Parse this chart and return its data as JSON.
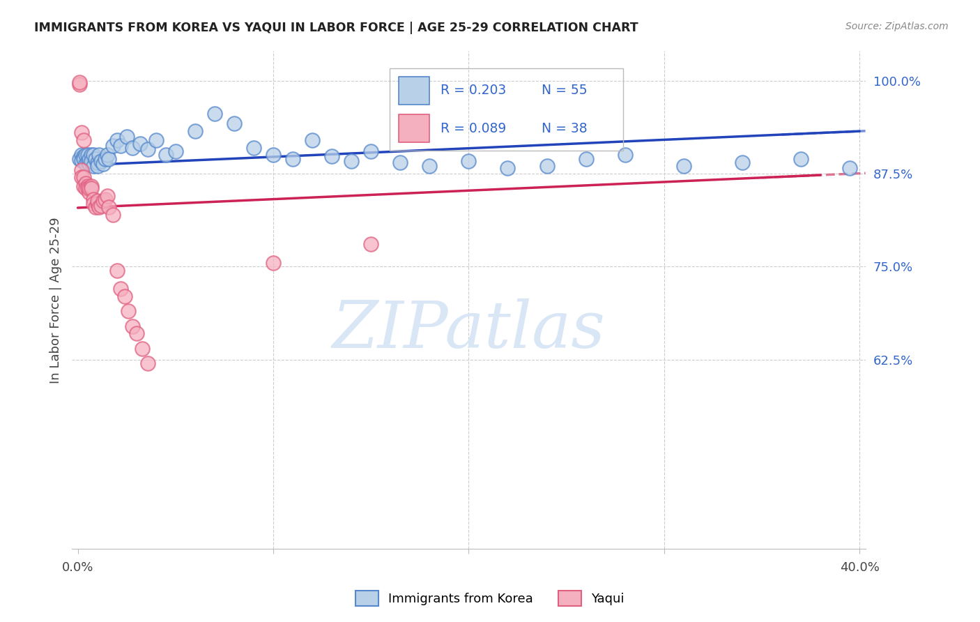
{
  "title": "IMMIGRANTS FROM KOREA VS YAQUI IN LABOR FORCE | AGE 25-29 CORRELATION CHART",
  "source": "Source: ZipAtlas.com",
  "ylabel": "In Labor Force | Age 25-29",
  "xlim": [
    -0.003,
    0.403
  ],
  "ylim": [
    0.37,
    1.04
  ],
  "yticks_right": [
    1.0,
    0.875,
    0.75,
    0.625
  ],
  "ytick_labels_right": [
    "100.0%",
    "87.5%",
    "75.0%",
    "62.5%"
  ],
  "legend_korea_r": "R = 0.203",
  "legend_korea_n": "N = 55",
  "legend_yaqui_r": "R = 0.089",
  "legend_yaqui_n": "N = 38",
  "korea_color": "#b8d0e8",
  "yaqui_color": "#f5b0c0",
  "korea_edge": "#5588cc",
  "yaqui_edge": "#e06080",
  "regression_korea_color": "#2244bb",
  "regression_yaqui_color": "#cc2255",
  "watermark": "ZIPatlas",
  "watermark_color": "#d8e6f5",
  "korea_x": [
    0.001,
    0.002,
    0.002,
    0.003,
    0.003,
    0.004,
    0.004,
    0.005,
    0.005,
    0.006,
    0.006,
    0.007,
    0.007,
    0.008,
    0.008,
    0.009,
    0.01,
    0.01,
    0.011,
    0.012,
    0.013,
    0.014,
    0.015,
    0.016,
    0.018,
    0.02,
    0.022,
    0.025,
    0.028,
    0.032,
    0.036,
    0.04,
    0.045,
    0.05,
    0.06,
    0.07,
    0.08,
    0.09,
    0.1,
    0.11,
    0.12,
    0.13,
    0.14,
    0.15,
    0.165,
    0.18,
    0.2,
    0.22,
    0.24,
    0.26,
    0.28,
    0.31,
    0.34,
    0.37,
    0.395
  ],
  "korea_y": [
    0.895,
    0.9,
    0.893,
    0.898,
    0.895,
    0.888,
    0.9,
    0.892,
    0.9,
    0.888,
    0.895,
    0.9,
    0.892,
    0.885,
    0.9,
    0.895,
    0.89,
    0.885,
    0.9,
    0.892,
    0.888,
    0.895,
    0.9,
    0.895,
    0.912,
    0.92,
    0.912,
    0.925,
    0.91,
    0.915,
    0.908,
    0.92,
    0.9,
    0.905,
    0.932,
    0.956,
    0.942,
    0.91,
    0.9,
    0.895,
    0.92,
    0.898,
    0.892,
    0.905,
    0.89,
    0.885,
    0.892,
    0.882,
    0.885,
    0.895,
    0.9,
    0.885,
    0.89,
    0.895,
    0.882
  ],
  "yaqui_x": [
    0.001,
    0.001,
    0.002,
    0.002,
    0.002,
    0.003,
    0.003,
    0.003,
    0.004,
    0.004,
    0.005,
    0.005,
    0.006,
    0.006,
    0.007,
    0.007,
    0.008,
    0.008,
    0.009,
    0.01,
    0.01,
    0.011,
    0.012,
    0.013,
    0.014,
    0.015,
    0.016,
    0.018,
    0.02,
    0.022,
    0.024,
    0.026,
    0.028,
    0.03,
    0.033,
    0.036,
    0.1,
    0.15
  ],
  "yaqui_y": [
    0.995,
    0.998,
    0.88,
    0.87,
    0.93,
    0.87,
    0.858,
    0.92,
    0.862,
    0.855,
    0.858,
    0.855,
    0.85,
    0.855,
    0.858,
    0.855,
    0.84,
    0.835,
    0.83,
    0.835,
    0.838,
    0.83,
    0.832,
    0.838,
    0.84,
    0.845,
    0.83,
    0.82,
    0.745,
    0.72,
    0.71,
    0.69,
    0.67,
    0.66,
    0.64,
    0.62,
    0.755,
    0.78
  ]
}
